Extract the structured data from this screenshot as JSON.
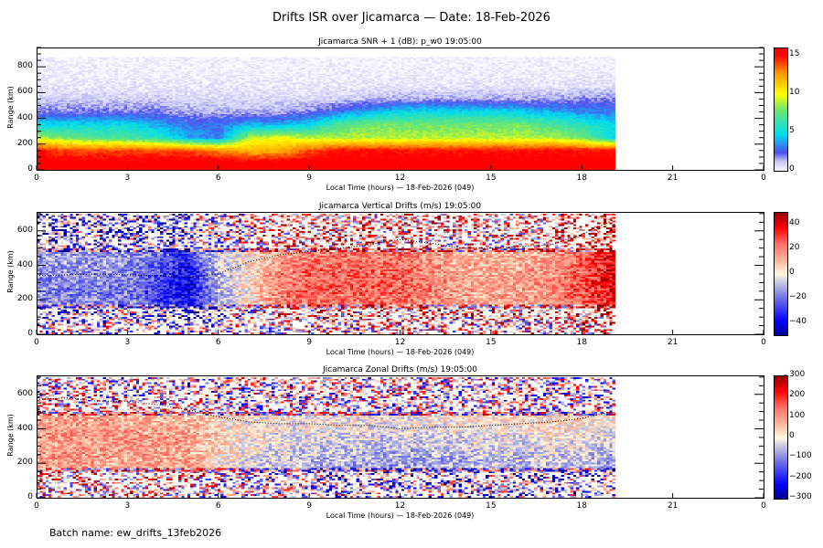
{
  "title": "Drifts ISR over Jicamarca — Date: 18-Feb-2026",
  "batch_name": "Batch name: ew_drifts_13feb2026",
  "chart_data": [
    {
      "type": "heatmap",
      "title": "Jicamarca SNR + 1 (dB): p_w0 19:05:00",
      "xlabel": "Local Time (hours) — 18-Feb-2026 (049)",
      "ylabel": "Range (km)",
      "xlim": [
        0,
        24
      ],
      "ylim": [
        0,
        950
      ],
      "xticks": [
        "0",
        "3",
        "6",
        "9",
        "12",
        "15",
        "18",
        "21",
        "0"
      ],
      "yticks": [
        "0",
        "200",
        "400",
        "600",
        "800"
      ],
      "colorbar": {
        "range": [
          0,
          16
        ],
        "ticks": [
          "0",
          "5",
          "10",
          "15"
        ],
        "colormap": "white-blue-cyan-green-yellow-red"
      },
      "data_end_hour": 19.1,
      "x_hours": [
        0,
        1,
        2,
        3,
        4,
        5,
        6,
        7,
        8,
        9,
        10,
        11,
        12,
        13,
        14,
        15,
        16,
        17,
        18,
        19
      ],
      "range_bins_km": [
        50,
        150,
        250,
        350,
        450,
        550,
        650,
        750,
        850
      ],
      "values": [
        [
          16,
          16,
          16,
          16,
          16,
          16,
          16,
          16,
          16,
          16,
          16,
          16,
          16,
          16,
          16,
          16,
          16,
          16,
          16,
          16
        ],
        [
          15,
          14,
          14,
          14,
          14,
          14,
          13,
          12,
          12,
          14,
          15,
          15,
          15,
          15,
          15,
          15,
          15,
          15,
          15,
          15
        ],
        [
          9,
          8,
          7,
          7,
          6,
          4,
          3,
          9,
          10,
          9,
          9,
          9,
          9,
          9,
          9,
          9,
          9,
          9,
          8,
          5
        ],
        [
          5,
          5,
          5,
          5,
          4,
          3,
          3,
          4,
          4,
          5,
          7,
          8,
          8,
          8,
          8,
          8,
          8,
          7,
          6,
          5
        ],
        [
          2,
          2,
          2,
          2,
          2,
          1.5,
          1.5,
          1.5,
          1.5,
          2,
          3,
          4,
          5,
          5,
          5,
          5,
          4.5,
          4,
          3.5,
          3
        ],
        [
          1,
          1,
          1,
          1,
          1,
          0.8,
          0.8,
          0.8,
          0.8,
          0.8,
          1,
          1.2,
          1.5,
          1.5,
          1.5,
          1.5,
          1.5,
          1.5,
          1.8,
          2
        ],
        [
          0.4,
          0.4,
          0.4,
          0.4,
          0.4,
          0.4,
          0.4,
          0.4,
          0.4,
          0.4,
          0.4,
          0.4,
          0.5,
          0.5,
          0.5,
          0.5,
          0.5,
          0.5,
          0.6,
          0.6
        ],
        [
          0.2,
          0.2,
          0.2,
          0.2,
          0.2,
          0.2,
          0.2,
          0.2,
          0.2,
          0.2,
          0.2,
          0.2,
          0.2,
          0.2,
          0.2,
          0.2,
          0.2,
          0.2,
          0.3,
          0.3
        ],
        [
          0.1,
          0.1,
          0.1,
          0.1,
          0.1,
          0.1,
          0.1,
          0.1,
          0.1,
          0.1,
          0.1,
          0.1,
          0.1,
          0.1,
          0.1,
          0.1,
          0.1,
          0.1,
          0.1,
          0.1
        ]
      ]
    },
    {
      "type": "heatmap",
      "title": "Jicamarca Vertical Drifts (m/s) 19:05:00",
      "xlabel": "Local Time (hours) — 18-Feb-2026 (049)",
      "ylabel": "Range (km)",
      "xlim": [
        0,
        24
      ],
      "ylim": [
        0,
        710
      ],
      "xticks": [
        "0",
        "3",
        "6",
        "9",
        "12",
        "15",
        "18",
        "21",
        "0"
      ],
      "yticks": [
        "0",
        "200",
        "400",
        "600"
      ],
      "colorbar": {
        "range": [
          -50,
          50
        ],
        "ticks": [
          "-40",
          "-20",
          "0",
          "20",
          "40"
        ],
        "colormap": "blue-white-red"
      },
      "data_end_hour": 19.1,
      "x_hours": [
        0,
        1,
        2,
        3,
        4,
        5,
        6,
        7,
        8,
        9,
        10,
        11,
        12,
        13,
        14,
        15,
        16,
        17,
        18,
        19
      ],
      "range_bins_km": [
        50,
        150,
        250,
        350,
        450,
        550,
        650
      ],
      "values": [
        [
          5,
          0,
          0,
          0,
          -5,
          -10,
          0,
          5,
          10,
          10,
          10,
          10,
          10,
          8,
          8,
          8,
          8,
          10,
          15,
          20
        ],
        [
          -15,
          -15,
          -15,
          -15,
          -25,
          -35,
          -10,
          5,
          20,
          20,
          22,
          22,
          22,
          18,
          15,
          15,
          15,
          18,
          25,
          35
        ],
        [
          -15,
          -18,
          -18,
          -18,
          -28,
          -40,
          -10,
          3,
          22,
          25,
          25,
          25,
          25,
          20,
          15,
          15,
          15,
          18,
          28,
          38
        ],
        [
          -15,
          -15,
          -15,
          -15,
          -25,
          -38,
          -8,
          3,
          20,
          25,
          25,
          25,
          25,
          20,
          15,
          15,
          15,
          18,
          28,
          40
        ],
        [
          -12,
          -12,
          -12,
          -12,
          -20,
          -30,
          -5,
          3,
          15,
          20,
          22,
          22,
          22,
          18,
          12,
          12,
          12,
          15,
          25,
          40
        ],
        [
          -20,
          -15,
          -15,
          -15,
          -15,
          -20,
          0,
          5,
          15,
          20,
          20,
          20,
          20,
          15,
          10,
          10,
          10,
          15,
          25,
          40
        ],
        [
          -30,
          -20,
          -20,
          -20,
          -20,
          -20,
          0,
          5,
          15,
          20,
          20,
          20,
          20,
          15,
          15,
          15,
          15,
          20,
          30,
          45
        ]
      ],
      "trace": {
        "x": [
          0,
          2,
          4,
          5,
          6,
          7,
          8,
          9,
          10,
          11,
          12,
          13,
          14,
          15,
          16,
          17,
          18,
          18.5,
          19
        ],
        "y": [
          340,
          350,
          340,
          330,
          350,
          420,
          460,
          480,
          500,
          520,
          550,
          530,
          500,
          500,
          510,
          520,
          580,
          620,
          660
        ]
      }
    },
    {
      "type": "heatmap",
      "title": "Jicamarca Zonal Drifts (m/s) 19:05:00",
      "xlabel": "Local Time (hours) — 18-Feb-2026 (049)",
      "ylabel": "Range (km)",
      "xlim": [
        0,
        24
      ],
      "ylim": [
        0,
        710
      ],
      "xticks": [
        "0",
        "3",
        "6",
        "9",
        "12",
        "15",
        "18",
        "21",
        "0"
      ],
      "yticks": [
        "0",
        "200",
        "400",
        "600"
      ],
      "colorbar": {
        "range": [
          -300,
          300
        ],
        "ticks": [
          "-300",
          "-200",
          "-100",
          "0",
          "100",
          "200",
          "300"
        ],
        "colormap": "blue-white-red"
      },
      "data_end_hour": 19.1,
      "x_hours": [
        0,
        1,
        2,
        3,
        4,
        5,
        6,
        7,
        8,
        9,
        10,
        11,
        12,
        13,
        14,
        15,
        16,
        17,
        18,
        19
      ],
      "range_bins_km": [
        50,
        150,
        250,
        350,
        450,
        550,
        650
      ],
      "values": [
        [
          60,
          80,
          60,
          60,
          80,
          80,
          20,
          -20,
          -30,
          -30,
          -40,
          -50,
          -60,
          -60,
          -60,
          -50,
          -50,
          -40,
          -40,
          -60
        ],
        [
          80,
          100,
          80,
          80,
          90,
          90,
          20,
          -20,
          -40,
          -50,
          -60,
          -70,
          -80,
          -80,
          -70,
          -60,
          -60,
          -50,
          -50,
          -80
        ],
        [
          90,
          100,
          90,
          90,
          90,
          90,
          30,
          -10,
          -30,
          -40,
          -50,
          -60,
          -60,
          -60,
          -50,
          -40,
          -40,
          -30,
          -30,
          -60
        ],
        [
          100,
          110,
          100,
          100,
          100,
          90,
          40,
          0,
          -10,
          -20,
          -20,
          -30,
          -30,
          -20,
          -20,
          -10,
          -10,
          0,
          0,
          -20
        ],
        [
          90,
          90,
          90,
          80,
          80,
          70,
          30,
          10,
          0,
          0,
          0,
          0,
          0,
          10,
          10,
          20,
          20,
          30,
          30,
          20
        ],
        [
          50,
          40,
          40,
          30,
          30,
          20,
          10,
          0,
          0,
          0,
          0,
          0,
          0,
          0,
          0,
          0,
          0,
          0,
          0,
          0
        ],
        [
          0,
          0,
          0,
          0,
          0,
          0,
          0,
          0,
          0,
          0,
          0,
          0,
          0,
          0,
          0,
          0,
          0,
          0,
          0,
          0
        ]
      ],
      "trace": {
        "x": [
          0,
          1,
          2,
          3,
          4,
          5,
          6,
          7,
          8,
          9,
          10,
          11,
          12,
          13,
          14,
          15,
          16,
          17,
          18,
          19
        ],
        "y": [
          570,
          580,
          560,
          560,
          540,
          510,
          470,
          440,
          430,
          430,
          420,
          420,
          400,
          410,
          410,
          420,
          430,
          440,
          460,
          500
        ]
      }
    }
  ]
}
